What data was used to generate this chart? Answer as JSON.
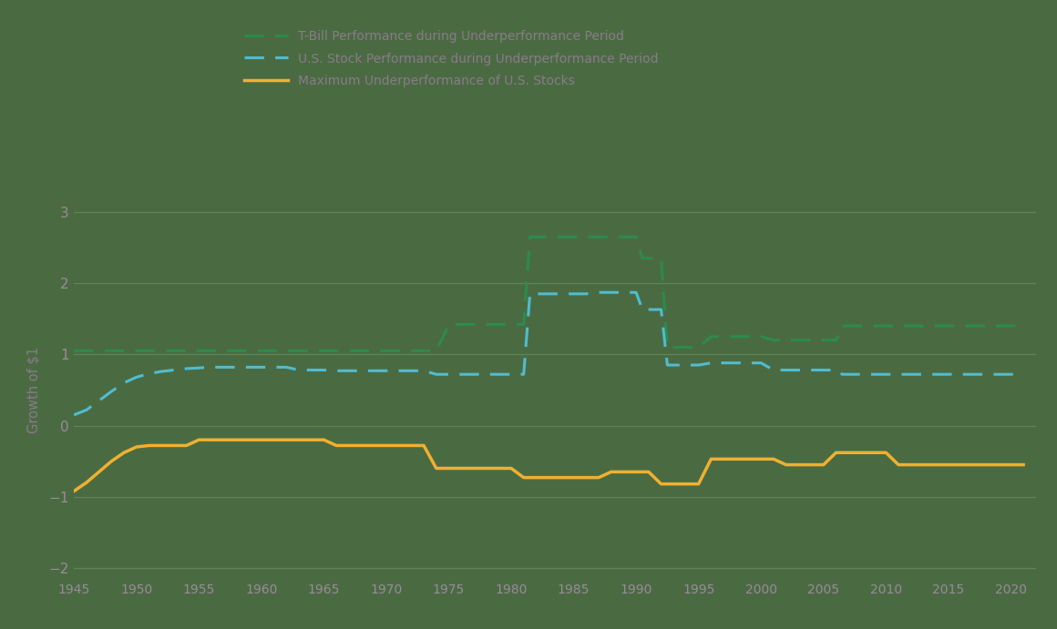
{
  "background_color": "#4a6b42",
  "grid_color": "#6a8f62",
  "text_color": "#8a7a8a",
  "tick_color": "#9a8a9a",
  "ylim": [
    -2.15,
    3.15
  ],
  "xlim": [
    1945,
    2022
  ],
  "yticks": [
    -2,
    -1,
    0,
    1,
    2,
    3
  ],
  "xticks": [
    1945,
    1950,
    1955,
    1960,
    1965,
    1970,
    1975,
    1980,
    1985,
    1990,
    1995,
    2000,
    2005,
    2010,
    2015,
    2020
  ],
  "ylabel": "Growth of $1",
  "legend_labels": [
    "T-Bill Performance during Underperformance Period",
    "U.S. Stock Performance during Underperformance Period",
    "Maximum Underperformance of U.S. Stocks"
  ],
  "tbill_color": "#2d8a50",
  "stock_color": "#50bcd0",
  "underperf_color": "#f0b030",
  "tbill_x": [
    1945,
    1946,
    1947,
    1948,
    1949,
    1950,
    1951,
    1952,
    1953,
    1954,
    1955,
    1956,
    1957,
    1958,
    1959,
    1960,
    1961,
    1962,
    1963,
    1964,
    1965,
    1966,
    1967,
    1968,
    1969,
    1970,
    1971,
    1972,
    1973,
    1974,
    1975,
    1976,
    1977,
    1978,
    1979,
    1980,
    1981,
    1981.5,
    1982,
    1983,
    1984,
    1985,
    1986,
    1987,
    1988,
    1989,
    1990,
    1990.5,
    1991,
    1992,
    1992.5,
    1993,
    1994,
    1995,
    1996,
    1997,
    1998,
    1999,
    2000,
    2001,
    2002,
    2003,
    2004,
    2005,
    2006,
    2006.5,
    2007,
    2008,
    2009,
    2010,
    2011,
    2012,
    2013,
    2014,
    2015,
    2016,
    2017,
    2018,
    2019,
    2020,
    2021
  ],
  "tbill_y": [
    1.05,
    1.05,
    1.05,
    1.05,
    1.05,
    1.05,
    1.05,
    1.05,
    1.05,
    1.05,
    1.05,
    1.05,
    1.05,
    1.05,
    1.05,
    1.05,
    1.05,
    1.05,
    1.05,
    1.05,
    1.05,
    1.05,
    1.05,
    1.05,
    1.05,
    1.05,
    1.05,
    1.05,
    1.05,
    1.05,
    1.42,
    1.42,
    1.42,
    1.42,
    1.42,
    1.42,
    1.42,
    2.65,
    2.65,
    2.65,
    2.65,
    2.65,
    2.65,
    2.65,
    2.65,
    2.65,
    2.65,
    2.35,
    2.35,
    2.35,
    1.1,
    1.1,
    1.1,
    1.1,
    1.25,
    1.25,
    1.25,
    1.25,
    1.25,
    1.2,
    1.2,
    1.2,
    1.2,
    1.2,
    1.2,
    1.4,
    1.4,
    1.4,
    1.4,
    1.4,
    1.4,
    1.4,
    1.4,
    1.4,
    1.4,
    1.4,
    1.4,
    1.4,
    1.4,
    1.4,
    1.4
  ],
  "stock_x": [
    1945,
    1946,
    1947,
    1948,
    1949,
    1950,
    1951,
    1952,
    1953,
    1954,
    1955,
    1956,
    1957,
    1958,
    1959,
    1960,
    1961,
    1962,
    1963,
    1964,
    1965,
    1966,
    1967,
    1968,
    1969,
    1970,
    1971,
    1972,
    1973,
    1974,
    1975,
    1976,
    1977,
    1978,
    1979,
    1980,
    1981,
    1981.5,
    1982,
    1983,
    1984,
    1985,
    1986,
    1987,
    1988,
    1989,
    1990,
    1990.5,
    1991,
    1992,
    1992.5,
    1993,
    1994,
    1995,
    1996,
    1997,
    1998,
    1999,
    2000,
    2001,
    2002,
    2003,
    2004,
    2005,
    2006,
    2006.5,
    2007,
    2008,
    2009,
    2010,
    2011,
    2012,
    2013,
    2014,
    2015,
    2016,
    2017,
    2018,
    2019,
    2020,
    2021
  ],
  "stock_y": [
    0.15,
    0.22,
    0.35,
    0.48,
    0.6,
    0.68,
    0.73,
    0.76,
    0.78,
    0.8,
    0.81,
    0.82,
    0.82,
    0.82,
    0.82,
    0.82,
    0.82,
    0.82,
    0.78,
    0.78,
    0.78,
    0.77,
    0.77,
    0.77,
    0.77,
    0.77,
    0.77,
    0.77,
    0.77,
    0.72,
    0.72,
    0.72,
    0.72,
    0.72,
    0.72,
    0.72,
    0.72,
    1.85,
    1.85,
    1.85,
    1.85,
    1.85,
    1.85,
    1.87,
    1.87,
    1.87,
    1.87,
    1.63,
    1.63,
    1.63,
    0.85,
    0.85,
    0.85,
    0.85,
    0.88,
    0.88,
    0.88,
    0.88,
    0.88,
    0.78,
    0.78,
    0.78,
    0.78,
    0.78,
    0.78,
    0.72,
    0.72,
    0.72,
    0.72,
    0.72,
    0.72,
    0.72,
    0.72,
    0.72,
    0.72,
    0.72,
    0.72,
    0.72,
    0.72,
    0.72,
    0.72
  ],
  "underperf_x": [
    1945,
    1946,
    1947,
    1948,
    1949,
    1950,
    1951,
    1952,
    1953,
    1954,
    1955,
    1956,
    1957,
    1958,
    1959,
    1960,
    1961,
    1962,
    1963,
    1964,
    1965,
    1966,
    1967,
    1968,
    1969,
    1970,
    1971,
    1972,
    1973,
    1974,
    1975,
    1976,
    1977,
    1978,
    1979,
    1980,
    1981,
    1982,
    1983,
    1984,
    1985,
    1986,
    1987,
    1988,
    1989,
    1990,
    1991,
    1992,
    1993,
    1994,
    1995,
    1996,
    1997,
    1998,
    1999,
    2000,
    2001,
    2002,
    2003,
    2004,
    2005,
    2006,
    2007,
    2008,
    2009,
    2010,
    2011,
    2012,
    2013,
    2014,
    2015,
    2016,
    2017,
    2018,
    2019,
    2020,
    2021
  ],
  "underperf_y": [
    -0.92,
    -0.8,
    -0.65,
    -0.5,
    -0.38,
    -0.3,
    -0.28,
    -0.28,
    -0.28,
    -0.28,
    -0.2,
    -0.2,
    -0.2,
    -0.2,
    -0.2,
    -0.2,
    -0.2,
    -0.2,
    -0.2,
    -0.2,
    -0.2,
    -0.28,
    -0.28,
    -0.28,
    -0.28,
    -0.28,
    -0.28,
    -0.28,
    -0.28,
    -0.6,
    -0.6,
    -0.6,
    -0.6,
    -0.6,
    -0.6,
    -0.6,
    -0.73,
    -0.73,
    -0.73,
    -0.73,
    -0.73,
    -0.73,
    -0.73,
    -0.65,
    -0.65,
    -0.65,
    -0.65,
    -0.82,
    -0.82,
    -0.82,
    -0.82,
    -0.47,
    -0.47,
    -0.47,
    -0.47,
    -0.47,
    -0.47,
    -0.55,
    -0.55,
    -0.55,
    -0.55,
    -0.38,
    -0.38,
    -0.38,
    -0.38,
    -0.38,
    -0.55,
    -0.55,
    -0.55,
    -0.55,
    -0.55,
    -0.55,
    -0.55,
    -0.55,
    -0.55,
    -0.55,
    -0.55
  ]
}
